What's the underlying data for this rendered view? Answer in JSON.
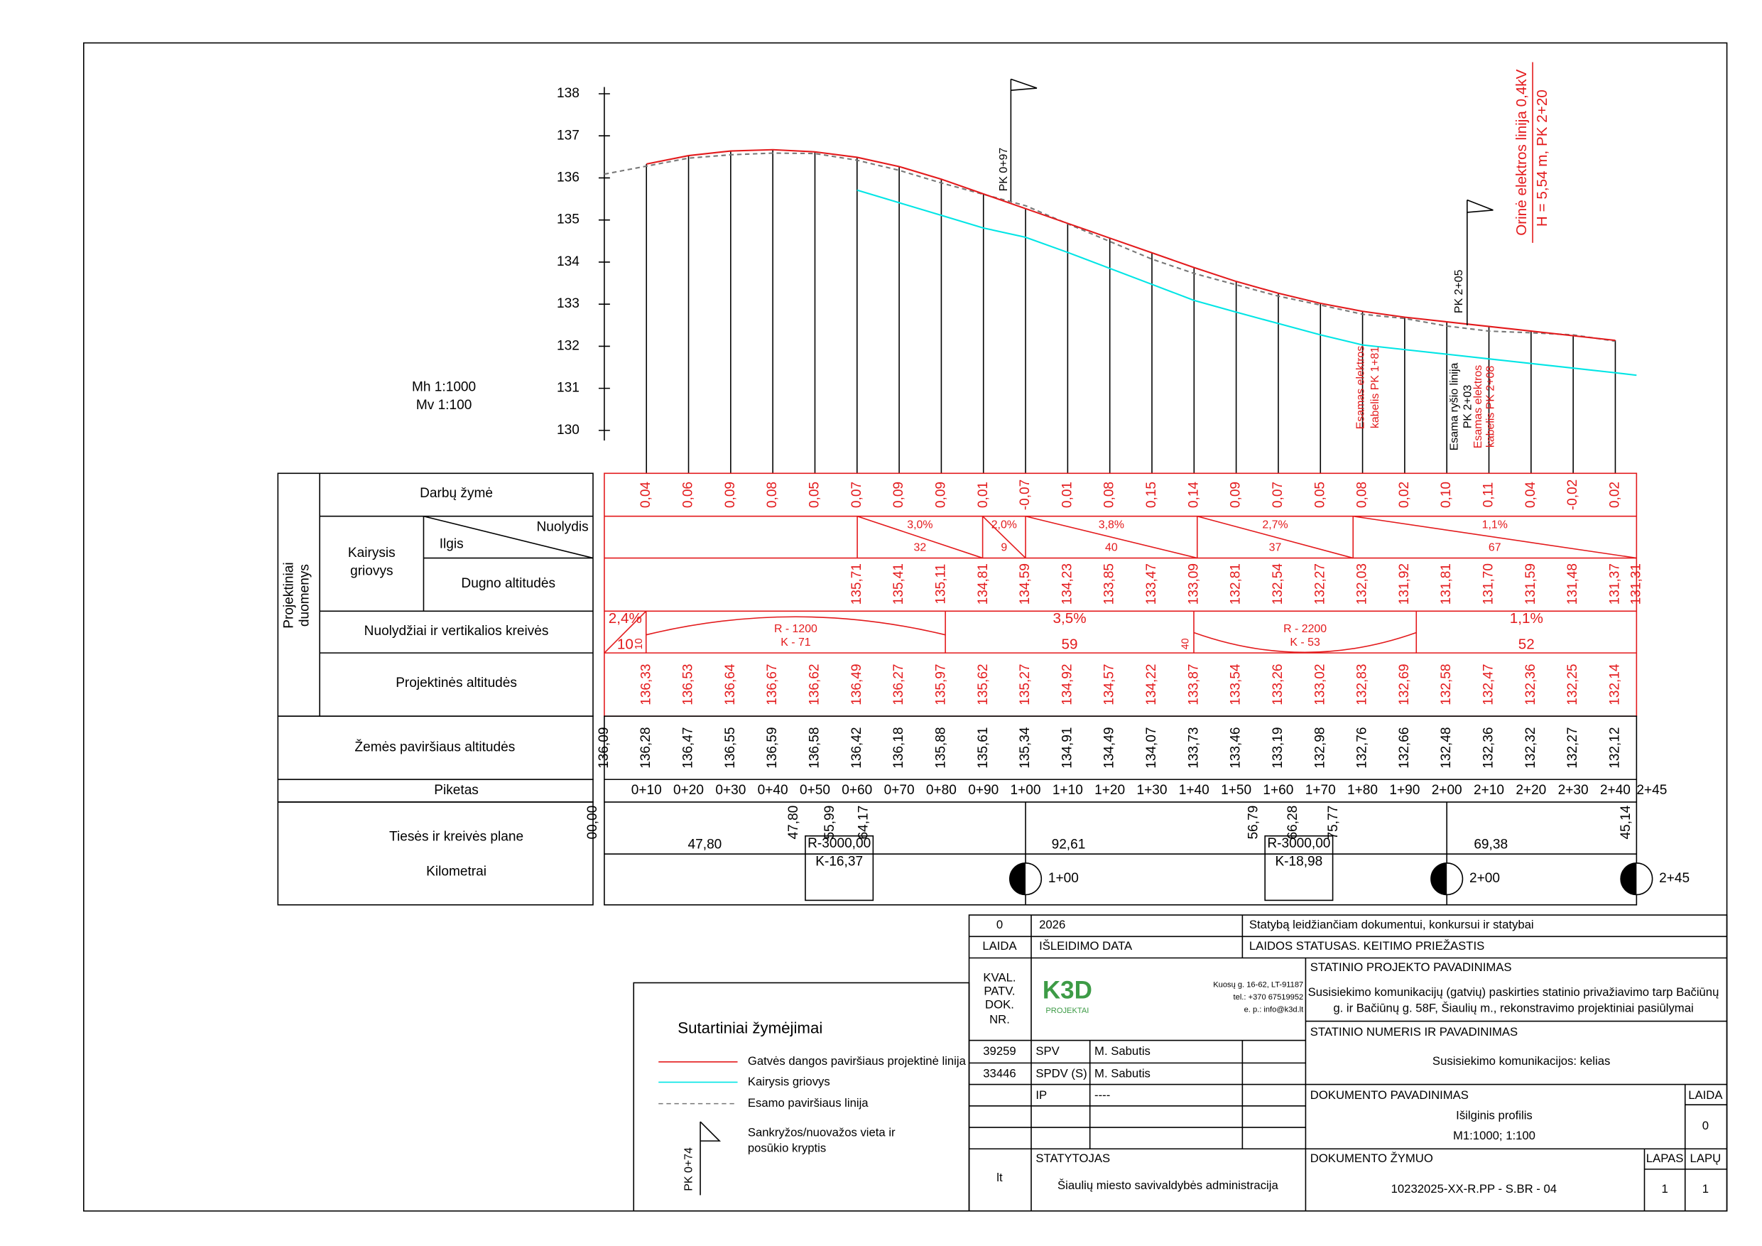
{
  "scales": {
    "horizontal": "Mh 1:1000",
    "vertical": "Mv 1:100"
  },
  "elevation_ticks": [
    130,
    131,
    132,
    133,
    134,
    135,
    136,
    137,
    138
  ],
  "annotations": {
    "pk_097": "PK 0+97",
    "pk_205": "PK 2+05",
    "power_line": "Orinė elektros linija 0,4kV",
    "power_line_height": "H = 5,54 m, PK 2+20",
    "cable_181": [
      "Esamas elektros",
      "kabelis PK 1+81"
    ],
    "telecom": [
      "Esama ryšio linija",
      "PK 2+03"
    ],
    "cable_208": [
      "Esamas elektros",
      "kabelis PK 2+08"
    ]
  },
  "row_labels": {
    "side": [
      "Projektiniai",
      "duomenys"
    ],
    "works": "Darbų žymė",
    "ditch": [
      "Kairysis",
      "griovys"
    ],
    "slope": "Nuolydis",
    "length": "Ilgis",
    "bottom": "Dugno altitudės",
    "grades": "Nuolydžiai ir vertikalios kreivės",
    "design": "Projektinės altitudės",
    "ground": "Žemės paviršiaus altitudės",
    "station": "Piketas",
    "plan": "Tiesės ir kreivės plane",
    "km": "Kilometrai"
  },
  "columns": {
    "station": [
      null,
      "0+10",
      "0+20",
      "0+30",
      "0+40",
      "0+50",
      "0+60",
      "0+70",
      "0+80",
      "0+90",
      "1+00",
      "1+10",
      "1+20",
      "1+30",
      "1+40",
      "1+50",
      "1+60",
      "1+70",
      "1+80",
      "1+90",
      "2+00",
      "2+10",
      "2+20",
      "2+30",
      "2+40",
      "2+45"
    ],
    "works": [
      null,
      "0,04",
      "0,06",
      "0,09",
      "0,08",
      "0,05",
      "0,07",
      "0,09",
      "0,09",
      "0,01",
      "-0,07",
      "0,01",
      "0,08",
      "0,15",
      "0,14",
      "0,09",
      "0,07",
      "0,05",
      "0,08",
      "0,02",
      "0,10",
      "0,11",
      "0,04",
      "-0,02",
      "0,02",
      null
    ],
    "bottom": [
      null,
      null,
      null,
      null,
      null,
      null,
      "135,71",
      "135,41",
      "135,11",
      "134,81",
      "134,59",
      "134,23",
      "133,85",
      "133,47",
      "133,09",
      "132,81",
      "132,54",
      "132,27",
      "132,03",
      "131,92",
      "131,81",
      "131,70",
      "131,59",
      "131,48",
      "131,37",
      "131,31"
    ],
    "design": [
      null,
      "136,33",
      "136,53",
      "136,64",
      "136,67",
      "136,62",
      "136,49",
      "136,27",
      "135,97",
      "135,62",
      "135,27",
      "134,92",
      "134,57",
      "134,22",
      "133,87",
      "133,54",
      "133,26",
      "133,02",
      "132,83",
      "132,69",
      "132,58",
      "132,47",
      "132,36",
      "132,25",
      "132,14",
      null
    ],
    "ground": [
      "136,09",
      "136,28",
      "136,47",
      "136,55",
      "136,59",
      "136,58",
      "136,42",
      "136,18",
      "135,88",
      "135,61",
      "135,34",
      "134,91",
      "134,49",
      "134,07",
      "133,73",
      "133,46",
      "133,19",
      "132,98",
      "132,76",
      "132,66",
      "132,48",
      "132,36",
      "132,32",
      "132,27",
      "132,12",
      null
    ]
  },
  "ditch_segments": [
    {
      "slope": "3,0%",
      "length": "32"
    },
    {
      "slope": "2,0%",
      "length": "9"
    },
    {
      "slope": "3,8%",
      "length": "40"
    },
    {
      "slope": "2,7%",
      "length": "37"
    },
    {
      "slope": "1,1%",
      "length": "67"
    }
  ],
  "grade_segments": [
    {
      "grade": "2,4%",
      "length": "10"
    },
    {
      "radius": "R - 1200",
      "k": "K - 71"
    },
    {
      "grade": "3,5%",
      "length": "59"
    },
    {
      "radius": "R - 2200",
      "k": "K - 53"
    },
    {
      "grade": "1,1%",
      "length": "52"
    }
  ],
  "curve_tangents": [
    "10",
    "40"
  ],
  "plan": {
    "straights": [
      "47,80",
      "92,61",
      "69,38"
    ],
    "marks": [
      "00,00",
      "47,80",
      "55,99",
      "64,17",
      "56,79",
      "66,28",
      "75,77",
      "45,14"
    ],
    "curves": [
      {
        "r": "R-3000,00",
        "k": "K-16,37"
      },
      {
        "r": "R-3000,00",
        "k": "K-18,98"
      }
    ]
  },
  "kilometers": [
    "1+00",
    "2+00",
    "2+45"
  ],
  "legend": {
    "title": "Sutartiniai žymėjimai",
    "items": [
      "Gatvės dangos paviršiaus projektinė linija",
      "Kairysis griovys",
      "Esamo paviršiaus linija"
    ],
    "flag_label": "PK 0+74",
    "flag_text": [
      "Sankryžos/nuovažos vieta ir",
      "posūkio kryptis"
    ]
  },
  "title_block": {
    "issue": "0",
    "date": "2026",
    "status": "Statybą leidžiančiam dokumentui, konkursui ir statybai",
    "issue_header": "LAIDA",
    "date_header": "IŠLEIDIMO DATA",
    "status_header": "LAIDOS STATUSAS. KEITIMO PRIEŽASTIS",
    "qual": [
      "KVAL.",
      "PATV.",
      "DOK.",
      "NR."
    ],
    "logo": "K3D",
    "logo_sub": "PROJEKTAI",
    "address": [
      "Kuosų g. 16-62, LT-91187",
      "tel.: +370 67519952",
      "e. p.: info@k3d.lt"
    ],
    "project_header": "STATINIO PROJEKTO PAVADINIMAS",
    "project_name": [
      "Susisiekimo komunikacijų (gatvių) paskirties statinio privažiavimo tarp Bačiūnų",
      "g. ir Bačiūnų g. 58F, Šiaulių m., rekonstravimo projektiniai pasiūlymai"
    ],
    "people": [
      [
        "39259",
        "SPV",
        "M. Sabutis"
      ],
      [
        "33446",
        "SPDV (S)",
        "M. Sabutis"
      ],
      [
        "IP",
        "----"
      ]
    ],
    "lang": "lt",
    "client_header": "STATYTOJAS",
    "client": "Šiaulių miesto savivaldybės administracija",
    "number_header": "STATINIO NUMERIS IR PAVADINIMAS",
    "number_name": "Susisiekimo komunikacijos: kelias",
    "doc_header": "DOKUMENTO PAVADINIMAS",
    "doc_name": "Išilginis profilis",
    "doc_scale": "M1:1000; 1:100",
    "doc_issue_header": "LAIDA",
    "doc_issue": "0",
    "code_header": "DOKUMENTO ŽYMUO",
    "code": "10232025-XX-R.PP - S.BR - 04",
    "sheet_header": "LAPAS",
    "sheets_header": "LAPŲ",
    "sheet": "1",
    "sheets": "1"
  }
}
